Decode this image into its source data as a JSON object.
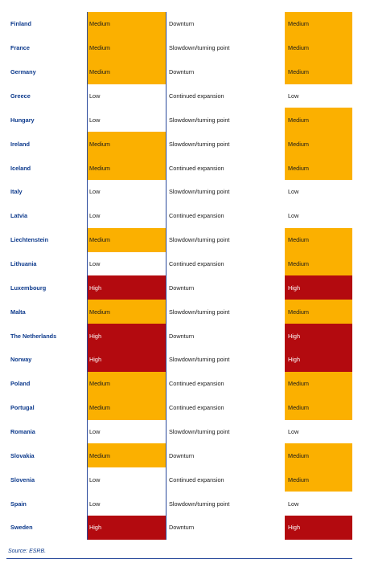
{
  "table": {
    "rows": [
      {
        "country": "Finland",
        "level1": "Medium",
        "cycle": "Downturn",
        "level2": "Medium"
      },
      {
        "country": "France",
        "level1": "Medium",
        "cycle": "Slowdown/turning point",
        "level2": "Medium"
      },
      {
        "country": "Germany",
        "level1": "Medium",
        "cycle": "Downturn",
        "level2": "Medium"
      },
      {
        "country": "Greece",
        "level1": "Low",
        "cycle": "Continued expansion",
        "level2": "Low"
      },
      {
        "country": "Hungary",
        "level1": "Low",
        "cycle": "Slowdown/turning point",
        "level2": "Medium"
      },
      {
        "country": "Ireland",
        "level1": "Medium",
        "cycle": "Slowdown/turning point",
        "level2": "Medium"
      },
      {
        "country": "Iceland",
        "level1": "Medium",
        "cycle": "Continued expansion",
        "level2": "Medium"
      },
      {
        "country": "Italy",
        "level1": "Low",
        "cycle": "Slowdown/turning point",
        "level2": "Low"
      },
      {
        "country": "Latvia",
        "level1": "Low",
        "cycle": "Continued expansion",
        "level2": "Low"
      },
      {
        "country": "Liechtenstein",
        "level1": "Medium",
        "cycle": "Slowdown/turning point",
        "level2": "Medium"
      },
      {
        "country": "Lithuania",
        "level1": "Low",
        "cycle": "Continued expansion",
        "level2": "Medium"
      },
      {
        "country": "Luxembourg",
        "level1": "High",
        "cycle": "Downturn",
        "level2": "High"
      },
      {
        "country": "Malta",
        "level1": "Medium",
        "cycle": "Slowdown/turning point",
        "level2": "Medium"
      },
      {
        "country": "The Netherlands",
        "level1": "High",
        "cycle": "Downturn",
        "level2": "High"
      },
      {
        "country": "Norway",
        "level1": "High",
        "cycle": "Slowdown/turning point",
        "level2": "High"
      },
      {
        "country": "Poland",
        "level1": "Medium",
        "cycle": "Continued expansion",
        "level2": "Medium"
      },
      {
        "country": "Portugal",
        "level1": "Medium",
        "cycle": "Continued expansion",
        "level2": "Medium"
      },
      {
        "country": "Romania",
        "level1": "Low",
        "cycle": "Slowdown/turning point",
        "level2": "Low"
      },
      {
        "country": "Slovakia",
        "level1": "Medium",
        "cycle": "Downturn",
        "level2": "Medium"
      },
      {
        "country": "Slovenia",
        "level1": "Low",
        "cycle": "Continued expansion",
        "level2": "Medium"
      },
      {
        "country": "Spain",
        "level1": "Low",
        "cycle": "Slowdown/turning point",
        "level2": "Low"
      },
      {
        "country": "Sweden",
        "level1": "High",
        "cycle": "Downturn",
        "level2": "High"
      }
    ]
  },
  "colors": {
    "low": "#ffffff",
    "medium": "#fbb000",
    "high": "#b30a0f",
    "country_text": "#0d3a8c",
    "rule": "#2a4a9c"
  },
  "source": "Source: ESRB."
}
